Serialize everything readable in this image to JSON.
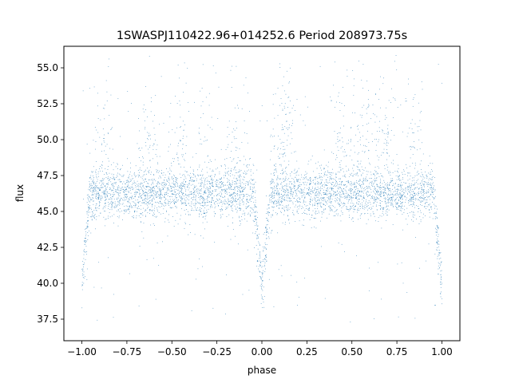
{
  "chart_data": {
    "type": "scatter",
    "title": "1SWASPJ110422.96+014252.6 Period 208973.75s",
    "xlabel": "phase",
    "ylabel": "flux",
    "xlim": [
      -1.1,
      1.1
    ],
    "ylim": [
      36.0,
      56.5
    ],
    "xticks": [
      -1.0,
      -0.75,
      -0.5,
      -0.25,
      0.0,
      0.25,
      0.5,
      0.75,
      1.0
    ],
    "xtick_labels": [
      "−1.00",
      "−0.75",
      "−0.50",
      "−0.25",
      "0.00",
      "0.25",
      "0.50",
      "0.75",
      "1.00"
    ],
    "yticks": [
      37.5,
      40.0,
      42.5,
      45.0,
      47.5,
      50.0,
      52.5,
      55.0
    ],
    "ytick_labels": [
      "37.5",
      "40.0",
      "42.5",
      "45.0",
      "47.5",
      "50.0",
      "52.5",
      "55.0"
    ],
    "grid": false,
    "marker_color": "#1f77b4",
    "series": [
      {
        "x": [
          -0.99,
          -0.97,
          -0.95,
          -0.9,
          -0.85,
          -0.75,
          -0.65,
          -0.5,
          -0.35,
          -0.3,
          -0.15,
          -0.05,
          -0.02,
          0.0,
          0.02,
          0.05,
          0.1,
          0.15,
          0.3,
          0.45,
          0.55,
          0.65,
          0.7,
          0.85,
          0.95,
          0.98,
          1.0
        ],
        "y": [
          40.0,
          41.0,
          43.5,
          46.0,
          48.5,
          46.2,
          46.3,
          46.4,
          50.5,
          51.0,
          46.5,
          43.5,
          41.0,
          40.0,
          41.0,
          43.5,
          49.0,
          48.5,
          46.3,
          46.4,
          48.5,
          50.0,
          50.5,
          48.0,
          44.5,
          41.0,
          40.0
        ]
      }
    ]
  }
}
